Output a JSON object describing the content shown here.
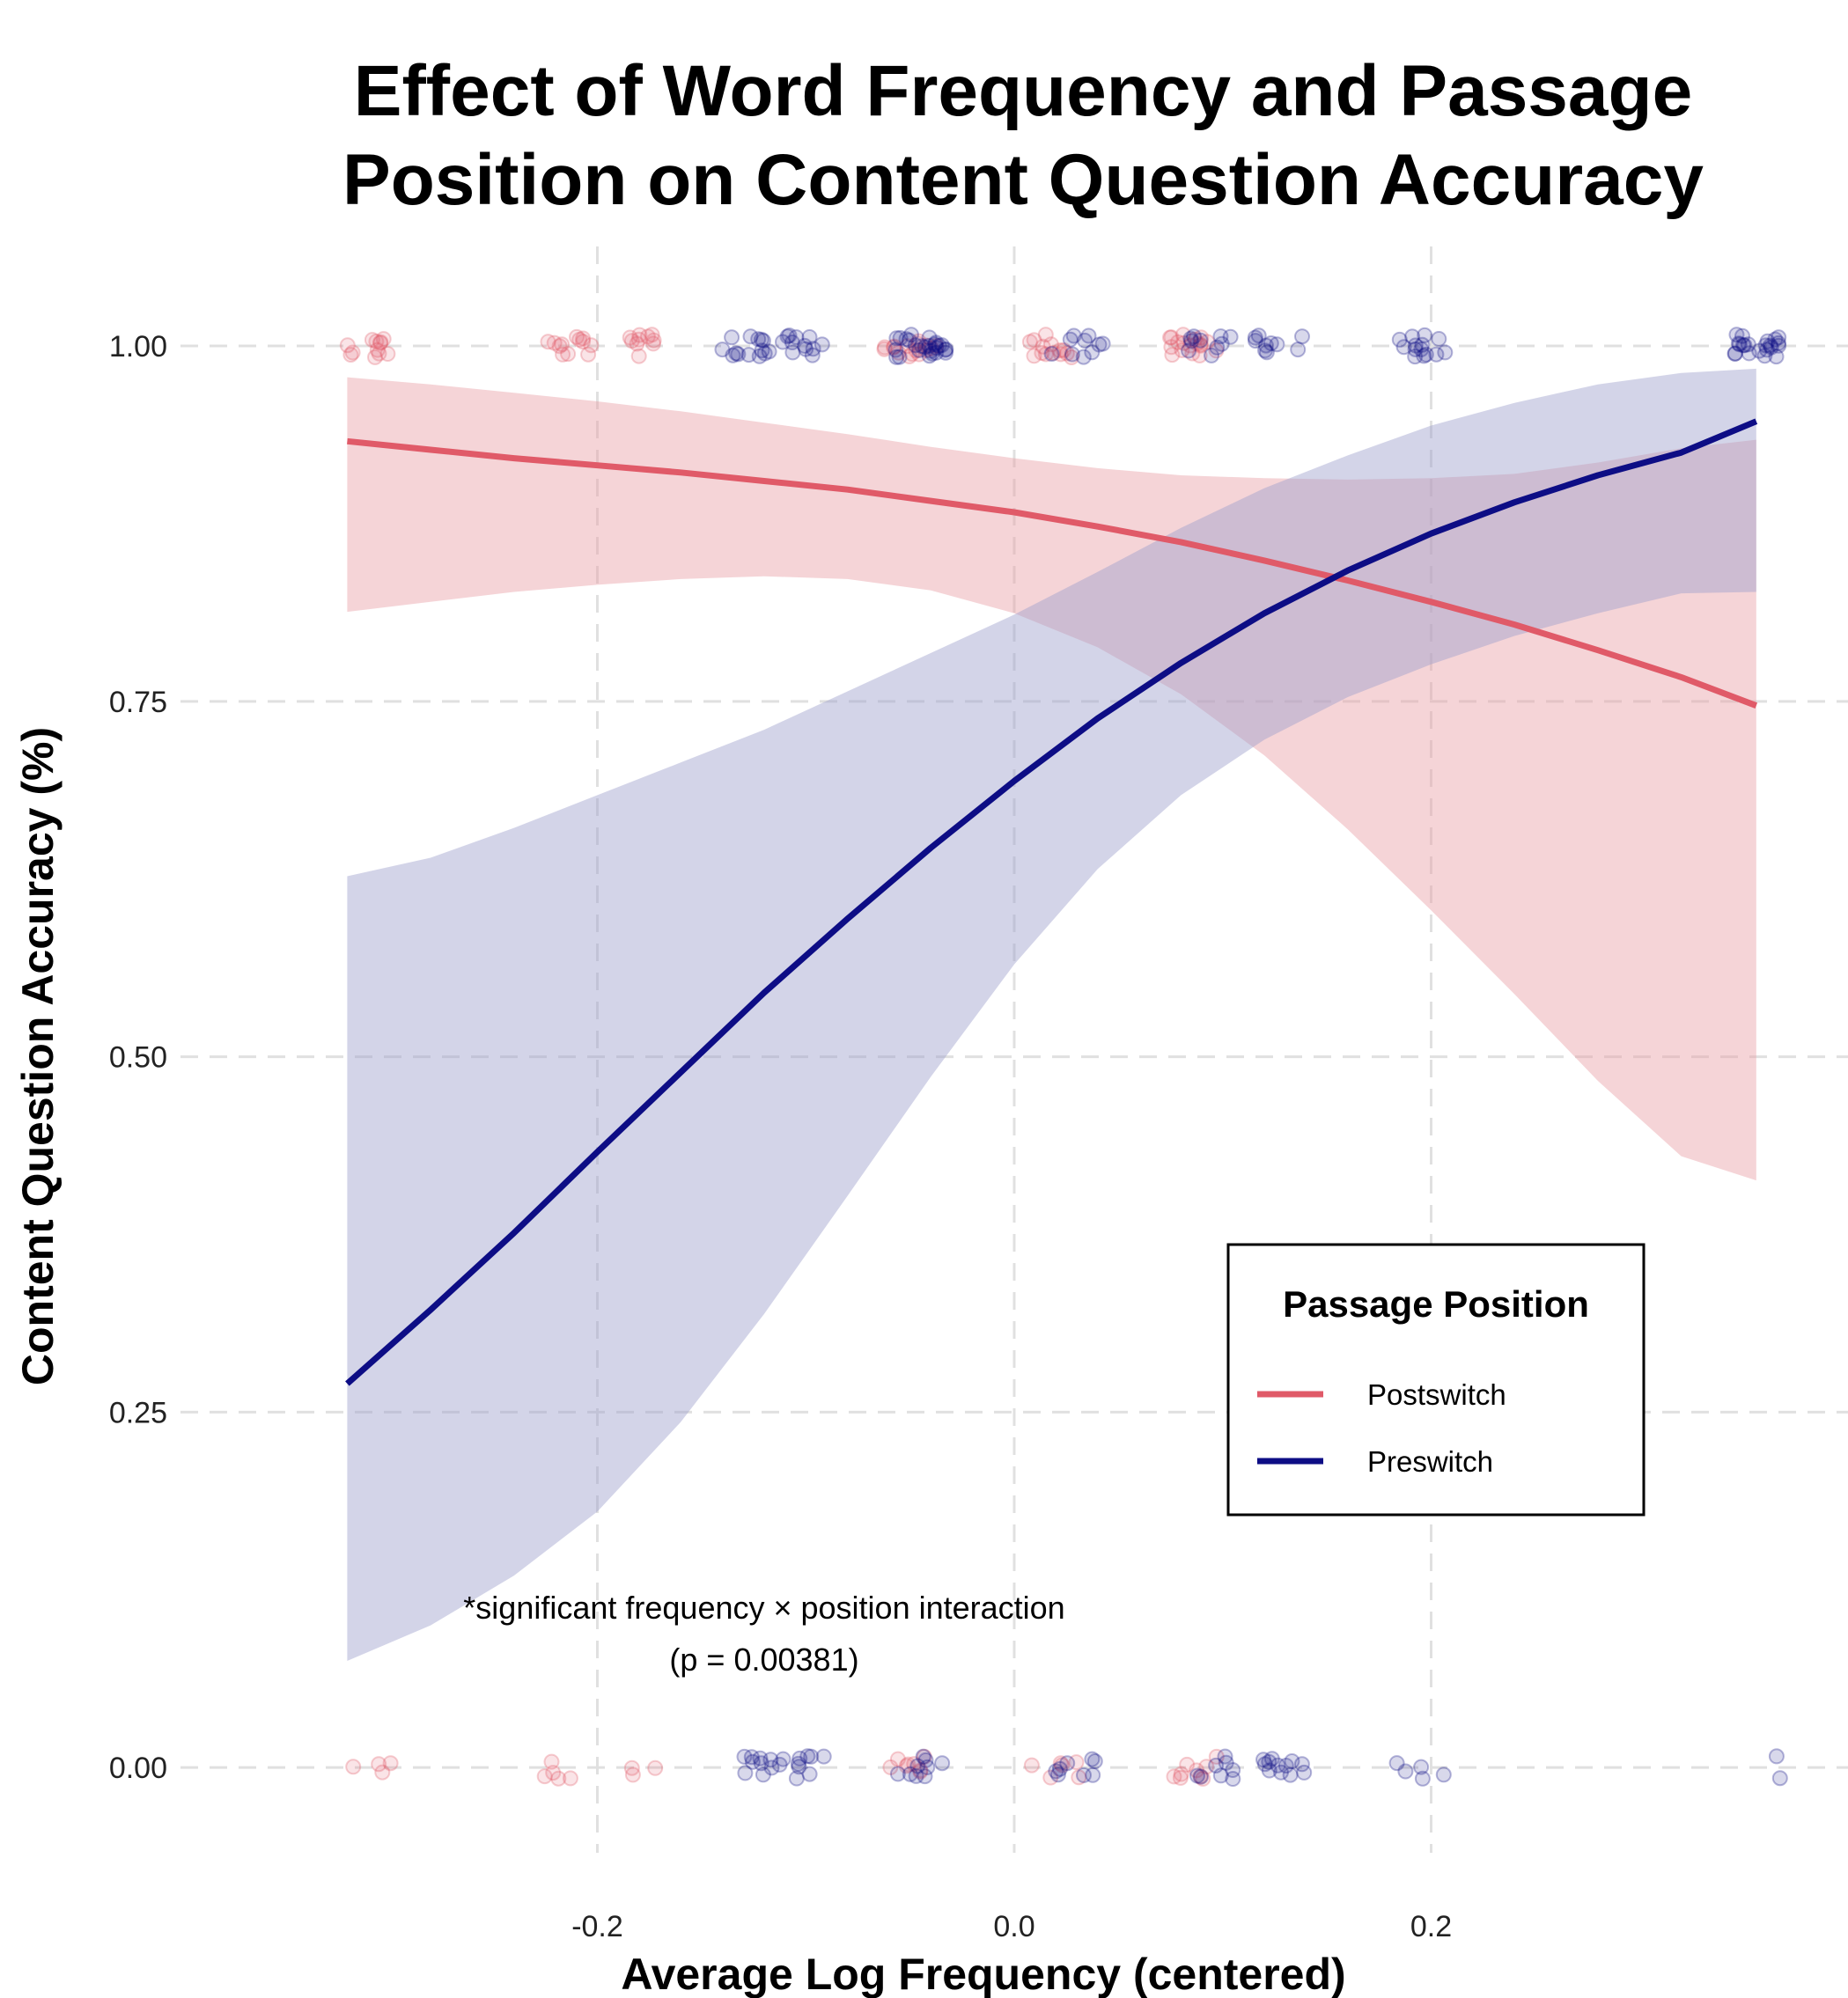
{
  "chart_data": {
    "type": "line",
    "title": [
      "Effect of Word Frequency and Passage",
      "Position on Content Question Accuracy"
    ],
    "xlabel": "Average Log Frequency (centered)",
    "ylabel": "Content Question Accuracy (%)",
    "xlim": [
      -0.4,
      0.4
    ],
    "ylim": [
      -0.06,
      1.07
    ],
    "x_ticks": [
      -0.2,
      0.0,
      0.2
    ],
    "x_tick_labels": [
      "-0.2",
      "0.0",
      "0.2"
    ],
    "y_ticks": [
      0.0,
      0.25,
      0.5,
      0.75,
      1.0
    ],
    "y_tick_labels": [
      "0.00",
      "0.25",
      "0.50",
      "0.75",
      "1.00"
    ],
    "grid": true,
    "legend": {
      "title": "Passage Position",
      "placement": "bottom-right",
      "entries": [
        "Postswitch",
        "Preswitch"
      ]
    },
    "annotation": [
      "*significant frequency × position interaction",
      "(p = 0.00381)"
    ],
    "series": [
      {
        "name": "Postswitch",
        "color": "#e05a68",
        "band_color": "#e9a0a6",
        "x": [
          -0.32,
          -0.28,
          -0.24,
          -0.2,
          -0.16,
          -0.12,
          -0.08,
          -0.04,
          0.0,
          0.04,
          0.08,
          0.12,
          0.16,
          0.2,
          0.24,
          0.28,
          0.32,
          0.356
        ],
        "y": [
          0.933,
          0.927,
          0.921,
          0.916,
          0.911,
          0.905,
          0.899,
          0.891,
          0.883,
          0.873,
          0.862,
          0.849,
          0.835,
          0.82,
          0.804,
          0.786,
          0.767,
          0.747
        ],
        "lower": [
          0.813,
          0.82,
          0.827,
          0.832,
          0.836,
          0.838,
          0.836,
          0.828,
          0.812,
          0.788,
          0.755,
          0.712,
          0.66,
          0.603,
          0.544,
          0.483,
          0.43,
          0.413
        ],
        "upper": [
          0.978,
          0.973,
          0.967,
          0.961,
          0.954,
          0.946,
          0.938,
          0.929,
          0.921,
          0.914,
          0.909,
          0.907,
          0.906,
          0.907,
          0.91,
          0.918,
          0.928,
          0.934
        ]
      },
      {
        "name": "Preswitch",
        "color": "#0d0d85",
        "band_color": "#9d9fcd",
        "x": [
          -0.32,
          -0.28,
          -0.24,
          -0.2,
          -0.16,
          -0.12,
          -0.08,
          -0.04,
          0.0,
          0.04,
          0.08,
          0.12,
          0.16,
          0.2,
          0.24,
          0.28,
          0.32,
          0.356
        ],
        "y": [
          0.27,
          0.322,
          0.376,
          0.433,
          0.489,
          0.545,
          0.597,
          0.647,
          0.694,
          0.738,
          0.777,
          0.812,
          0.842,
          0.868,
          0.89,
          0.909,
          0.925,
          0.947
        ],
        "lower": [
          0.075,
          0.1,
          0.135,
          0.18,
          0.243,
          0.319,
          0.402,
          0.486,
          0.565,
          0.632,
          0.684,
          0.723,
          0.753,
          0.776,
          0.796,
          0.812,
          0.826,
          0.827
        ],
        "upper": [
          0.627,
          0.64,
          0.661,
          0.684,
          0.707,
          0.73,
          0.757,
          0.784,
          0.811,
          0.841,
          0.872,
          0.9,
          0.923,
          0.944,
          0.96,
          0.973,
          0.981,
          0.984
        ]
      }
    ],
    "jitter_points": {
      "Postswitch": {
        "accuracy_1": [
          {
            "x": -0.31,
            "n": 12
          },
          {
            "x": -0.215,
            "n": 12
          },
          {
            "x": -0.178,
            "n": 10
          },
          {
            "x": -0.05,
            "n": 16
          },
          {
            "x": 0.02,
            "n": 14
          },
          {
            "x": 0.085,
            "n": 18
          }
        ],
        "accuracy_0": [
          {
            "x": -0.31,
            "n": 4
          },
          {
            "x": -0.215,
            "n": 5
          },
          {
            "x": -0.178,
            "n": 3
          },
          {
            "x": -0.05,
            "n": 8
          },
          {
            "x": 0.02,
            "n": 6
          },
          {
            "x": 0.085,
            "n": 9
          }
        ]
      },
      "Preswitch": {
        "accuracy_1": [
          {
            "x": -0.128,
            "n": 14
          },
          {
            "x": -0.1,
            "n": 12
          },
          {
            "x": -0.045,
            "n": 26
          },
          {
            "x": 0.03,
            "n": 10
          },
          {
            "x": 0.095,
            "n": 10
          },
          {
            "x": 0.128,
            "n": 10
          },
          {
            "x": 0.196,
            "n": 14
          },
          {
            "x": 0.355,
            "n": 22
          }
        ],
        "accuracy_0": [
          {
            "x": -0.128,
            "n": 9
          },
          {
            "x": -0.1,
            "n": 10
          },
          {
            "x": -0.045,
            "n": 9
          },
          {
            "x": 0.03,
            "n": 8
          },
          {
            "x": 0.095,
            "n": 8
          },
          {
            "x": 0.128,
            "n": 12
          },
          {
            "x": 0.196,
            "n": 5
          },
          {
            "x": 0.355,
            "n": 2
          }
        ]
      }
    }
  }
}
